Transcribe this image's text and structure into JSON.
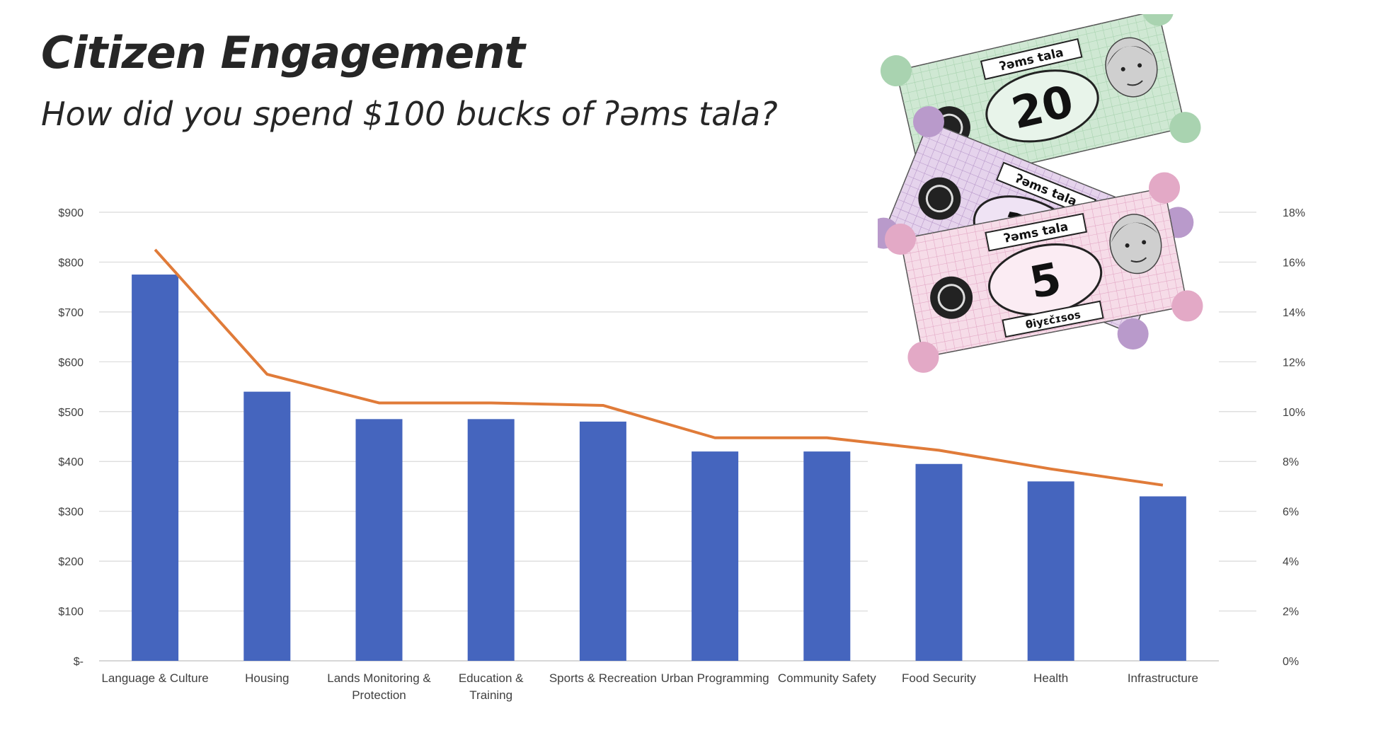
{
  "slide": {
    "title": "Citizen Engagement",
    "subtitle": "How did you spend $100 bucks of ʔəms tala?"
  },
  "chart_data": {
    "type": "bar",
    "categories": [
      "Language & Culture",
      "Housing",
      "Lands Monitoring & Protection",
      "Education & Training",
      "Sports & Recreation",
      "Urban Programming",
      "Community Safety",
      "Food Security",
      "Health",
      "Infrastructure"
    ],
    "category_labels": [
      [
        "Language & Culture"
      ],
      [
        "Housing"
      ],
      [
        "Lands Monitoring &",
        "Protection"
      ],
      [
        "Education &",
        "Training"
      ],
      [
        "Sports & Recreation"
      ],
      [
        "Urban Programming"
      ],
      [
        "Community Safety"
      ],
      [
        "Food Security"
      ],
      [
        "Health"
      ],
      [
        "Infrastructure"
      ]
    ],
    "series": [
      {
        "type": "bar",
        "axis": "left",
        "color": "#4565be",
        "values": [
          775,
          540,
          485,
          485,
          480,
          420,
          420,
          395,
          360,
          330
        ]
      },
      {
        "type": "line",
        "axis": "right",
        "color": "#e07b39",
        "values": [
          16.5,
          11.5,
          10.35,
          10.35,
          10.25,
          8.95,
          8.95,
          8.45,
          7.7,
          7.05
        ]
      }
    ],
    "ylim": [
      0,
      900
    ],
    "y_ticks": [
      0,
      100,
      200,
      300,
      400,
      500,
      600,
      700,
      800,
      900
    ],
    "y_tick_labels": [
      "$-",
      "$100",
      "$200",
      "$300",
      "$400",
      "$500",
      "$600",
      "$700",
      "$800",
      "$900"
    ],
    "y2lim": [
      0,
      18
    ],
    "y2_ticks": [
      0,
      2,
      4,
      6,
      8,
      10,
      12,
      14,
      16,
      18
    ],
    "y2_tick_labels": [
      "0%",
      "2%",
      "4%",
      "6%",
      "8%",
      "10%",
      "12%",
      "14%",
      "16%",
      "18%"
    ],
    "grid": true,
    "legend": "none"
  },
  "bills": [
    {
      "value": "20",
      "text_top": "ʔəms tala",
      "bg": "#cfe8d3",
      "border": "#a9d3b0",
      "oval": "#e8f4ea"
    },
    {
      "value": "10",
      "text_top": "ʔəms tala",
      "bg": "#e5d3ec",
      "border": "#b99acb",
      "oval": "#efe3f4"
    },
    {
      "value": "5",
      "text_top": "ʔəms tala",
      "text_bottom": "θiyɛčɪsos",
      "bg": "#f6dce8",
      "border": "#e3a9c6",
      "oval": "#fbecf3"
    }
  ]
}
